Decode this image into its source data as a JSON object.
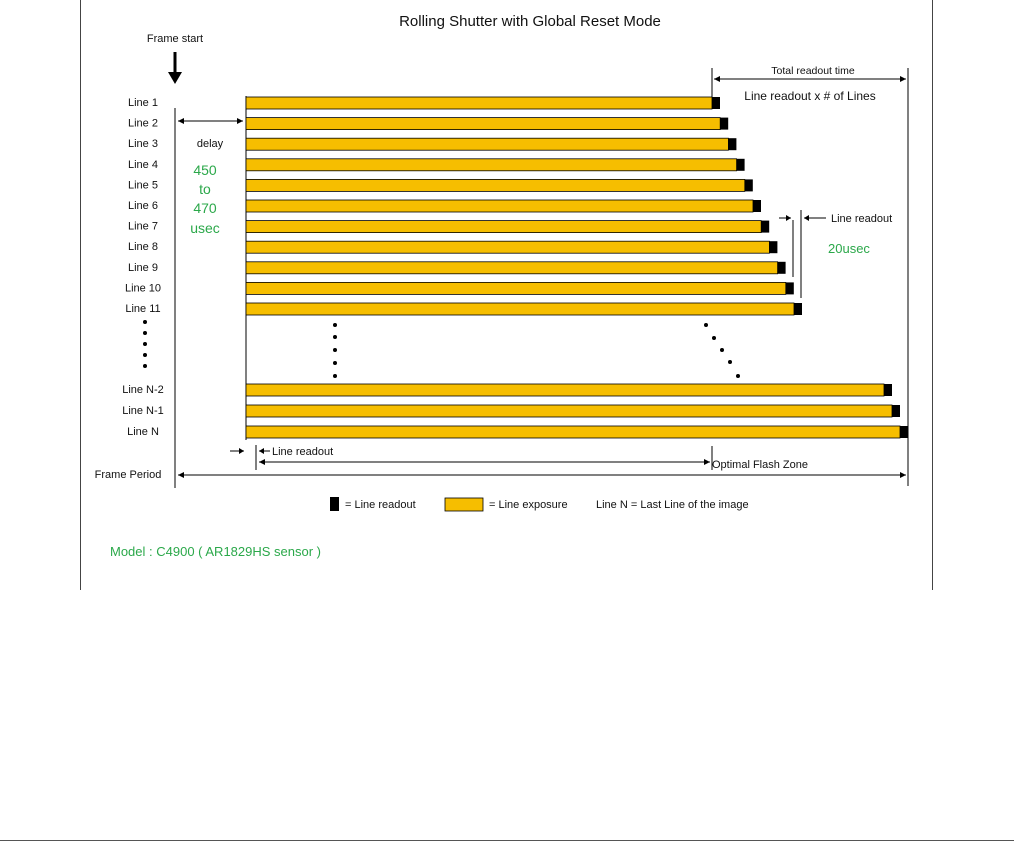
{
  "title": "Rolling Shutter  with  Global Reset Mode",
  "frame_start_label": "Frame start",
  "line_labels": [
    "Line 1",
    "Line 2",
    "Line 3",
    "Line 4",
    "Line 5",
    "Line 6",
    "Line 7",
    "Line 8",
    "Line 9",
    "Line 10",
    "Line 11"
  ],
  "tail_line_labels": [
    "Line N-2",
    "Line N-1",
    "Line N"
  ],
  "delay": {
    "label": "delay",
    "lines": [
      "450",
      "to",
      "470",
      "usec"
    ]
  },
  "total_readout_label": "Total readout time",
  "line_readout_formula": "Line readout  x # of Lines",
  "right_line_readout_label": "Line readout",
  "right_line_readout_value": "20usec",
  "bottom_line_readout_label": "Line readout",
  "optimal_flash_zone_label": "Optimal Flash Zone",
  "frame_period_label": "Frame Period",
  "legend": {
    "readout": "= Line readout",
    "exposure": "= Line exposure",
    "note": "Line N  = Last Line of the image"
  },
  "model_label": "Model : C4900  ( AR1829HS sensor )",
  "colors": {
    "exposure": "#F6BE00",
    "readout": "#000000",
    "accent_text": "#2BA84A",
    "frame_border": "#444444"
  }
}
